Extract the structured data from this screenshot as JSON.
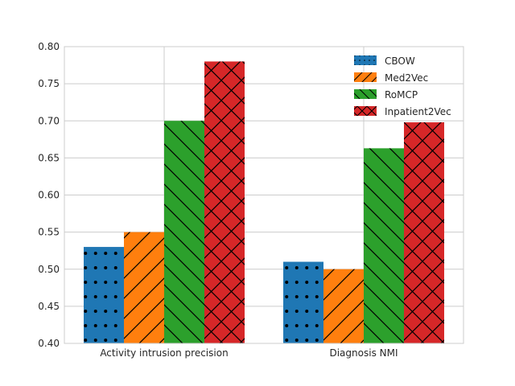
{
  "chart_data": {
    "type": "bar",
    "categories": [
      "Activity intrusion precision",
      "Diagnosis NMI"
    ],
    "series": [
      {
        "name": "CBOW",
        "values": [
          0.53,
          0.51
        ],
        "color": "#1f77b4",
        "hatch": "dots"
      },
      {
        "name": "Med2Vec",
        "values": [
          0.55,
          0.5
        ],
        "color": "#ff7f0e",
        "hatch": "forward-slash"
      },
      {
        "name": "RoMCP",
        "values": [
          0.7,
          0.663
        ],
        "color": "#2ca02c",
        "hatch": "back-slash"
      },
      {
        "name": "Inpatient2Vec",
        "values": [
          0.78,
          0.698
        ],
        "color": "#d62728",
        "hatch": "cross"
      }
    ],
    "title": "",
    "xlabel": "",
    "ylabel": "",
    "ylim": [
      0.4,
      0.8
    ],
    "yticks": [
      "0.40",
      "0.45",
      "0.50",
      "0.55",
      "0.60",
      "0.65",
      "0.70",
      "0.75",
      "0.80"
    ],
    "grid": true,
    "legend_position": "top-right"
  }
}
